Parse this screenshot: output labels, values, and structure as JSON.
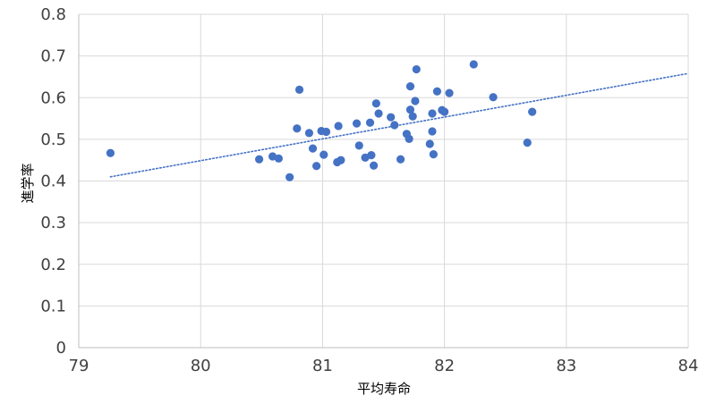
{
  "chart_data": {
    "type": "scatter",
    "xlabel": "平均寿命",
    "ylabel": "進学率",
    "xlim": [
      79,
      84
    ],
    "ylim": [
      0,
      0.8
    ],
    "x_ticks": [
      "79",
      "80",
      "81",
      "82",
      "83",
      "84"
    ],
    "y_ticks": [
      "0",
      "0.1",
      "0.2",
      "0.3",
      "0.4",
      "0.5",
      "0.6",
      "0.7",
      "0.8"
    ],
    "grid": true,
    "legend": "none",
    "marker_color": "#4472C4",
    "trendline": {
      "style": "dotted",
      "color": "#4472C4",
      "x": [
        79.26,
        84.0
      ],
      "y": [
        0.41,
        0.658
      ]
    },
    "series": [
      {
        "points": [
          [
            79.26,
            0.467
          ],
          [
            80.48,
            0.452
          ],
          [
            80.59,
            0.459
          ],
          [
            80.64,
            0.454
          ],
          [
            80.73,
            0.409
          ],
          [
            80.79,
            0.526
          ],
          [
            80.81,
            0.619
          ],
          [
            80.89,
            0.515
          ],
          [
            80.92,
            0.478
          ],
          [
            80.95,
            0.436
          ],
          [
            80.99,
            0.52
          ],
          [
            81.01,
            0.463
          ],
          [
            81.03,
            0.518
          ],
          [
            81.12,
            0.445
          ],
          [
            81.13,
            0.532
          ],
          [
            81.15,
            0.45
          ],
          [
            81.28,
            0.538
          ],
          [
            81.3,
            0.485
          ],
          [
            81.35,
            0.456
          ],
          [
            81.39,
            0.54
          ],
          [
            81.4,
            0.462
          ],
          [
            81.42,
            0.437
          ],
          [
            81.44,
            0.586
          ],
          [
            81.46,
            0.562
          ],
          [
            81.56,
            0.553
          ],
          [
            81.59,
            0.534
          ],
          [
            81.64,
            0.452
          ],
          [
            81.69,
            0.513
          ],
          [
            81.71,
            0.501
          ],
          [
            81.72,
            0.571
          ],
          [
            81.72,
            0.627
          ],
          [
            81.74,
            0.555
          ],
          [
            81.76,
            0.592
          ],
          [
            81.77,
            0.668
          ],
          [
            81.88,
            0.489
          ],
          [
            81.9,
            0.562
          ],
          [
            81.9,
            0.519
          ],
          [
            81.91,
            0.464
          ],
          [
            81.94,
            0.615
          ],
          [
            81.98,
            0.57
          ],
          [
            82.0,
            0.566
          ],
          [
            82.04,
            0.611
          ],
          [
            82.24,
            0.68
          ],
          [
            82.4,
            0.601
          ],
          [
            82.68,
            0.492
          ],
          [
            82.72,
            0.566
          ]
        ]
      }
    ]
  }
}
